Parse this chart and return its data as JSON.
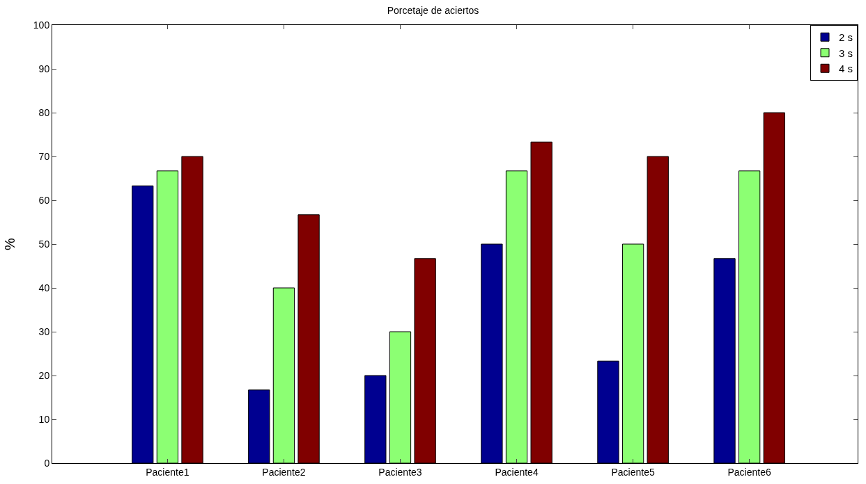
{
  "chart_data": {
    "type": "bar",
    "title": "Porcetaje de aciertos",
    "ylabel": "%",
    "categories": [
      "Paciente1",
      "Paciente2",
      "Paciente3",
      "Paciente4",
      "Paciente5",
      "Paciente6"
    ],
    "series": [
      {
        "name": "2 s",
        "color": "#000090",
        "values": [
          63.3,
          16.7,
          20,
          50,
          23.3,
          46.7
        ]
      },
      {
        "name": "3 s",
        "color": "#8cff73",
        "values": [
          66.7,
          40,
          30,
          66.7,
          50,
          66.7
        ]
      },
      {
        "name": "4 s",
        "color": "#800000",
        "values": [
          70,
          56.7,
          46.7,
          73.3,
          70,
          80
        ]
      }
    ],
    "ylim": [
      0,
      100
    ],
    "yticks": [
      0,
      10,
      20,
      30,
      40,
      50,
      60,
      70,
      80,
      90,
      100
    ],
    "grid": false,
    "legend": "top right"
  }
}
